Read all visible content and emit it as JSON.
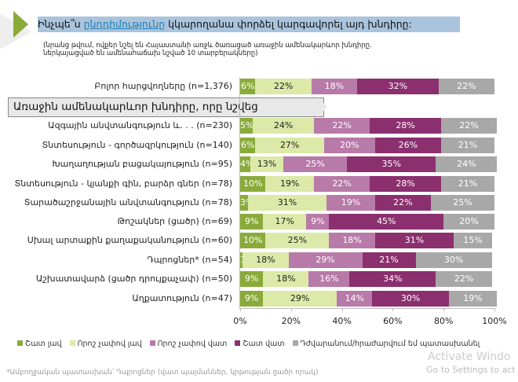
{
  "title": {
    "prefix": "Ինչպե՞ս ",
    "highlight": "ընդդիմությունը",
    "suffix": " կկարողանա փորձել կարգավորել այդ խնդիրը:"
  },
  "subtitle_line1": "(նրանց թվում, ովքեր նշել են Հայաստանի առջև ծառացած առաջին ամենակարևոր խնդիրը.",
  "subtitle_line2": "ներկայացված են ամենահաճախ նշված 10 տարբերակները)",
  "section_header": "Առաջին ամենակարևոր խնդիրը, որը նշվեց",
  "footnote": "*Ամբողջական պատասխան՝ Դպրոցներ (վատ պայմաններ, կրթության ցածր որակ)",
  "watermark": {
    "line1": "Activate Windo",
    "line2": "Go to Settings to act"
  },
  "chart_data": {
    "type": "bar",
    "orientation": "horizontal",
    "stacked": true,
    "percent": true,
    "xlim": [
      0,
      100
    ],
    "xticks": [
      "0%",
      "20%",
      "40%",
      "60%",
      "80%",
      "100%"
    ],
    "legend_position": "bottom",
    "categories": [
      "Բոլոր հարցվողները (n=1,376)",
      "Ազգային անվտանգություն և. . .  (n=230)",
      "Տնտեսություն - գործազրկություն (n=140)",
      "Խաղաղության բացակայություն (n=95)",
      "Տնտեսություն - կյանքի գին, բարձր գներ (n=78)",
      "Տարածաշրջանային անվտանգություն (n=78)",
      "Թոշակներ (ցածր) (n=69)",
      "Սխալ արտաքին քաղաքականություն (n=60)",
      "Դպրոցներ* (n=54)",
      "Աշխատավարձ (ցածր դրույքաչափ) (n=50)",
      "Աղքատություն (n=47)"
    ],
    "series": [
      {
        "name": "Շատ լավ",
        "color": "#8aab3a",
        "text_color": "#ffffff",
        "values": [
          6,
          5,
          6,
          4,
          10,
          3,
          9,
          10,
          1,
          9,
          9
        ]
      },
      {
        "name": "Որոշ չափով լավ",
        "color": "#dde9a8",
        "text_color": "#222222",
        "values": [
          22,
          24,
          27,
          13,
          19,
          31,
          17,
          25,
          18,
          18,
          29
        ]
      },
      {
        "name": "Որոշ չափով վատ",
        "color": "#b87aa8",
        "text_color": "#ffffff",
        "values": [
          18,
          22,
          20,
          25,
          22,
          19,
          9,
          18,
          29,
          16,
          14
        ]
      },
      {
        "name": "Շատ վատ",
        "color": "#8b2f6e",
        "text_color": "#ffffff",
        "values": [
          32,
          28,
          26,
          35,
          28,
          22,
          45,
          31,
          21,
          34,
          30
        ]
      },
      {
        "name": "Դժվարանում/հրաժարվում եմ պատասխանել",
        "color": "#a8a8a8",
        "text_color": "#ffffff",
        "values": [
          22,
          22,
          21,
          24,
          21,
          25,
          20,
          15,
          30,
          22,
          19
        ]
      }
    ]
  }
}
